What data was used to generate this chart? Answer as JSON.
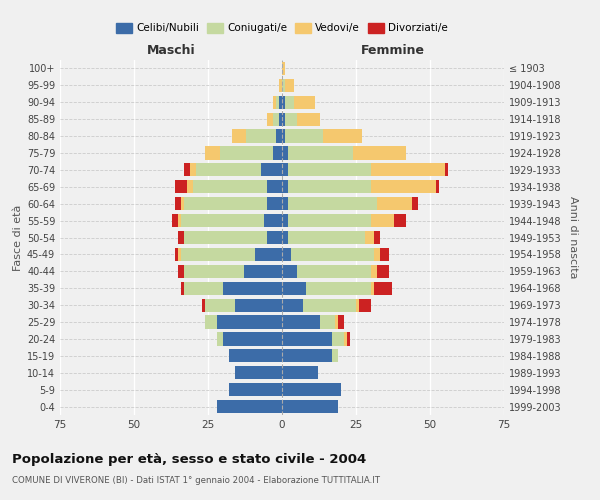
{
  "age_groups": [
    "0-4",
    "5-9",
    "10-14",
    "15-19",
    "20-24",
    "25-29",
    "30-34",
    "35-39",
    "40-44",
    "45-49",
    "50-54",
    "55-59",
    "60-64",
    "65-69",
    "70-74",
    "75-79",
    "80-84",
    "85-89",
    "90-94",
    "95-99",
    "100+"
  ],
  "birth_years": [
    "1999-2003",
    "1994-1998",
    "1989-1993",
    "1984-1988",
    "1979-1983",
    "1974-1978",
    "1969-1973",
    "1964-1968",
    "1959-1963",
    "1954-1958",
    "1949-1953",
    "1944-1948",
    "1939-1943",
    "1934-1938",
    "1929-1933",
    "1924-1928",
    "1919-1923",
    "1914-1918",
    "1909-1913",
    "1904-1908",
    "≤ 1903"
  ],
  "colors": {
    "celibe": "#3c6ca8",
    "coniugato": "#c5d9a0",
    "vedovo": "#f5c86e",
    "divorziato": "#cc2222"
  },
  "maschi": {
    "celibe": [
      22,
      18,
      16,
      18,
      20,
      22,
      16,
      20,
      13,
      9,
      5,
      6,
      5,
      5,
      7,
      3,
      2,
      1,
      1,
      0,
      0
    ],
    "coniugato": [
      0,
      0,
      0,
      0,
      2,
      4,
      10,
      13,
      20,
      25,
      28,
      28,
      28,
      25,
      22,
      18,
      10,
      2,
      1,
      0,
      0
    ],
    "vedovo": [
      0,
      0,
      0,
      0,
      0,
      0,
      0,
      0,
      0,
      1,
      0,
      1,
      1,
      2,
      2,
      5,
      5,
      2,
      1,
      1,
      0
    ],
    "divorziato": [
      0,
      0,
      0,
      0,
      0,
      0,
      1,
      1,
      2,
      1,
      2,
      2,
      2,
      4,
      2,
      0,
      0,
      0,
      0,
      0,
      0
    ]
  },
  "femmine": {
    "nubile": [
      19,
      20,
      12,
      17,
      17,
      13,
      7,
      8,
      5,
      3,
      2,
      2,
      2,
      2,
      2,
      2,
      1,
      1,
      1,
      0,
      0
    ],
    "coniugata": [
      0,
      0,
      0,
      2,
      4,
      5,
      18,
      22,
      25,
      28,
      26,
      28,
      30,
      28,
      28,
      22,
      13,
      4,
      3,
      1,
      0
    ],
    "vedova": [
      0,
      0,
      0,
      0,
      1,
      1,
      1,
      1,
      2,
      2,
      3,
      8,
      12,
      22,
      25,
      18,
      13,
      8,
      7,
      3,
      1
    ],
    "divorziata": [
      0,
      0,
      0,
      0,
      1,
      2,
      4,
      6,
      4,
      3,
      2,
      4,
      2,
      1,
      1,
      0,
      0,
      0,
      0,
      0,
      0
    ]
  },
  "xlim": 75,
  "title": "Popolazione per età, sesso e stato civile - 2004",
  "subtitle": "COMUNE DI VIVERONE (BI) - Dati ISTAT 1° gennaio 2004 - Elaborazione TUTTITALIA.IT",
  "ylabel_left": "Fasce di età",
  "ylabel_right": "Anni di nascita",
  "xlabel_left": "Maschi",
  "xlabel_right": "Femmine",
  "legend_labels": [
    "Celibi/Nubili",
    "Coniugati/e",
    "Vedovi/e",
    "Divorziati/e"
  ],
  "background_color": "#f0f0f0"
}
